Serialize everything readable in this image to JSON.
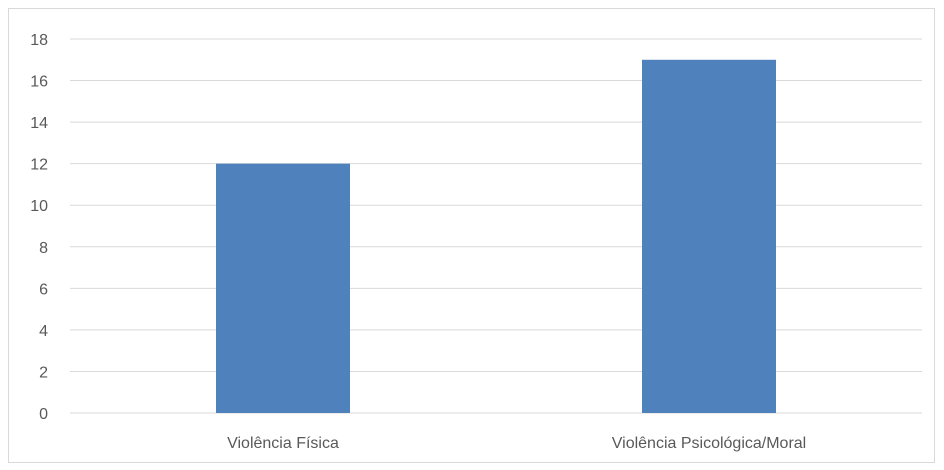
{
  "chart_data": {
    "type": "bar",
    "title": "",
    "xlabel": "",
    "ylabel": "",
    "categories": [
      "Violência Física",
      "Violência Psicológica/Moral"
    ],
    "values": [
      12,
      17
    ],
    "ylim": [
      0,
      18
    ],
    "yticks": [
      0,
      2,
      4,
      6,
      8,
      10,
      12,
      14,
      16,
      18
    ],
    "grid": true,
    "legend": "none",
    "bar_color": "#4f81bd",
    "grid_color": "#d9d9d9"
  }
}
